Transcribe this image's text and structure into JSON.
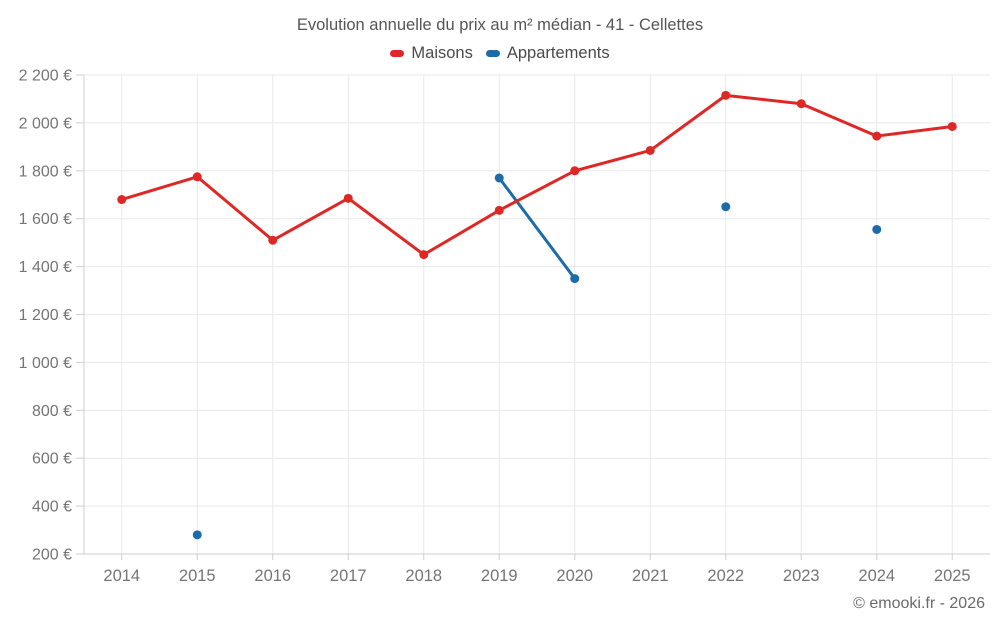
{
  "header": {
    "title": "Evolution annuelle du prix au m² médian - 41 - Cellettes"
  },
  "footer": {
    "copyright": "© emooki.fr - 2026"
  },
  "chart_data": {
    "type": "line",
    "title": "Evolution annuelle du prix au m² médian - 41 - Cellettes",
    "xlabel": "",
    "ylabel": "",
    "categories": [
      2014,
      2015,
      2016,
      2017,
      2018,
      2019,
      2020,
      2021,
      2022,
      2023,
      2024,
      2025
    ],
    "series": [
      {
        "name": "Maisons",
        "color": "#df2825",
        "values": [
          1680,
          1775,
          1510,
          1685,
          1450,
          1635,
          1800,
          1885,
          2115,
          2080,
          1945,
          1985
        ]
      },
      {
        "name": "Appartements",
        "color": "#1b6ca8",
        "values": [
          null,
          280,
          null,
          null,
          null,
          1770,
          1350,
          null,
          1650,
          null,
          1555,
          null
        ]
      }
    ],
    "ylim": [
      200,
      2200
    ],
    "ytick_step": 200,
    "ytick_labels": [
      "200 €",
      "400 €",
      "600 €",
      "800 €",
      "1 000 €",
      "1 200 €",
      "1 400 €",
      "1 600 €",
      "1 800 €",
      "2 000 €",
      "2 200 €"
    ],
    "y_unit": "€",
    "grid": true,
    "legend_position": "top"
  }
}
